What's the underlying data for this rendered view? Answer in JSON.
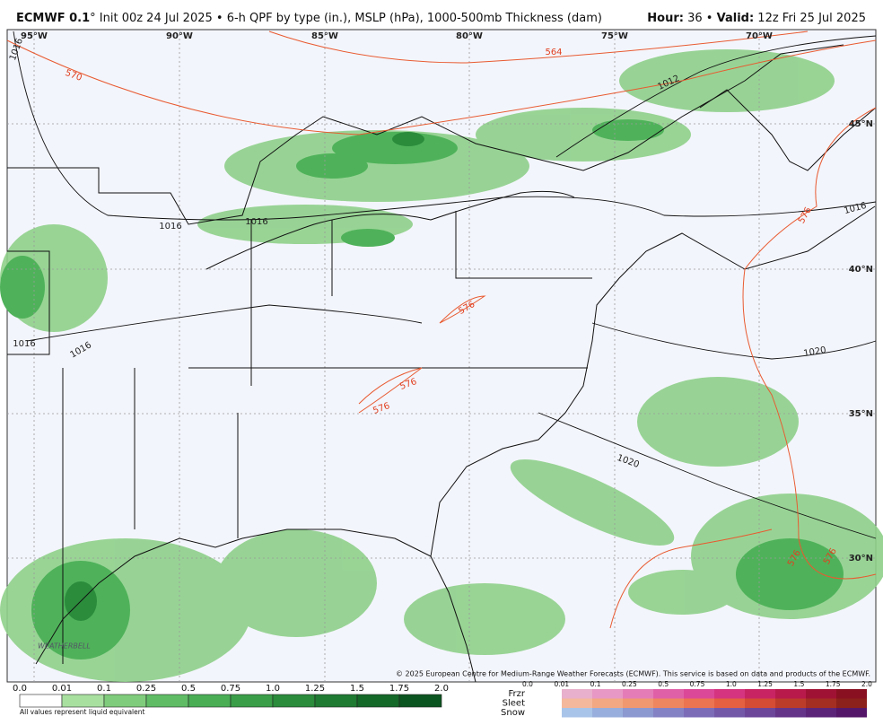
{
  "header": {
    "model": "ECMWF 0.1",
    "title": "° Init 00z 24 Jul 2025 • 6-h QPF by type (in.), MSLP (hPa), 1000-500mb Thickness (dam)",
    "hour_label": "Hour:",
    "hour": "36 •",
    "valid_label": "Valid:",
    "valid": "12z Fri 25 Jul 2025"
  },
  "map": {
    "lon_labels": [
      "95°W",
      "90°W",
      "85°W",
      "80°W",
      "75°W",
      "70°W"
    ],
    "lat_labels": [
      "45°N",
      "40°N",
      "35°N",
      "30°N"
    ],
    "isobar_labels": [
      "1016",
      "1012",
      "1016",
      "1016",
      "1016",
      "1016",
      "1016",
      "1020",
      "1020"
    ],
    "thickness_labels": [
      "570",
      "564",
      "576",
      "576",
      "576",
      "576",
      "576",
      "576"
    ],
    "logo": "WEATHERBELL",
    "copyright": "© 2025 European Centre for Medium-Range Weather Forecasts (ECMWF). This service is based on data and products of the ECMWF."
  },
  "legend": {
    "rain_ticks": [
      "0.0",
      "0.01",
      "0.1",
      "0.25",
      "0.5",
      "0.75",
      "1.0",
      "1.25",
      "1.5",
      "1.75",
      "2.0"
    ],
    "note": "All values represent liquid equivalent",
    "mixed_types": [
      "Frzr",
      "Sleet",
      "Snow"
    ],
    "mixed_ticks": [
      "0.0",
      "0.01",
      "0.1",
      "0.25",
      "0.5",
      "0.75",
      "1.0",
      "1.25",
      "1.5",
      "1.75",
      "2.0"
    ]
  }
}
